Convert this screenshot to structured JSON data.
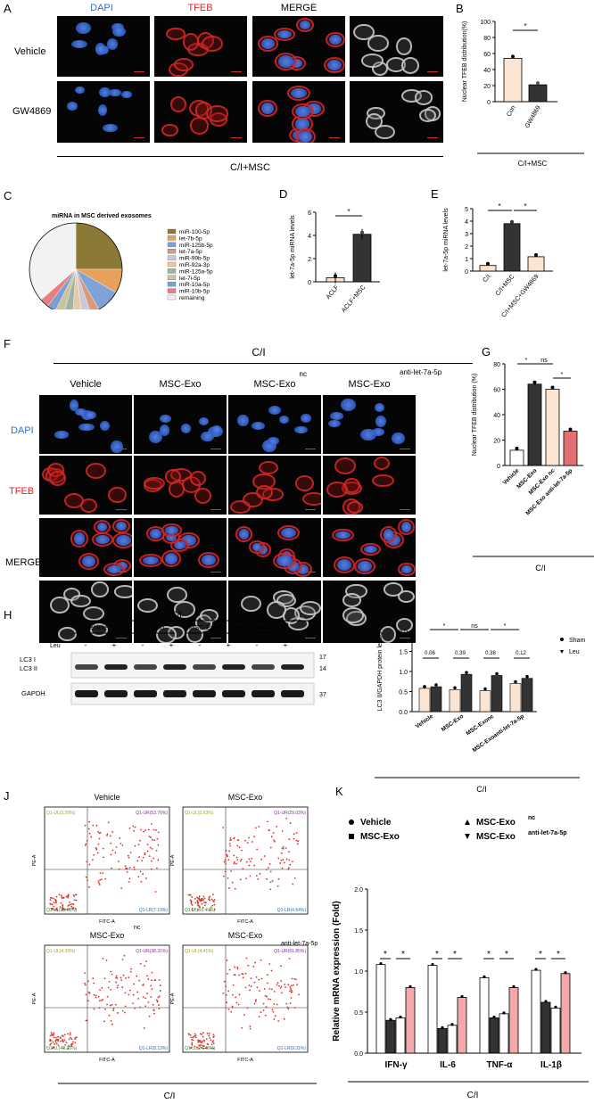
{
  "colors": {
    "dapi": "#2f6fd6",
    "tfeb": "#e02323",
    "light": "#fbe4d2",
    "dark": "#333333",
    "pink": "#f3a9a9",
    "legend": [
      "#8a7a36",
      "#e7a15a",
      "#7fa3d9",
      "#d99a7c",
      "#c9c9d9",
      "#e8c9a6",
      "#9fb4a0",
      "#c8c3a0",
      "#7f9ed0",
      "#e88080",
      "#f2f2f2"
    ]
  },
  "panelA": {
    "letter": "A",
    "headers": [
      "DAPI",
      "TFEB",
      "MERGE"
    ],
    "rows": [
      "Vehicle",
      "GW4869"
    ],
    "footer": "C/I+MSC"
  },
  "panelB": {
    "letter": "B",
    "ylabel": "Nuclear TFEB distribution(%)",
    "yticks": [
      "0",
      "20",
      "40",
      "60",
      "80",
      "100"
    ],
    "categories": [
      "Con",
      "GW4869"
    ],
    "sig": "*",
    "footer": "C/I+MSC"
  },
  "panelC": {
    "letter": "C",
    "title": "miRNA in MSC derived exosomes",
    "legend": [
      "miR-100-5p",
      "let-7b-5p",
      "miR-125b-5p",
      "let-7a-5p",
      "miR-99b-5p",
      "miR-92a-3p",
      "miR-125a-5p",
      "let-7i-5p",
      "miR-10a-5p",
      "miR-10b-5p",
      "remaining"
    ]
  },
  "panelD": {
    "letter": "D",
    "ylabel": "let-7a-5p miRNA levels",
    "yticks": [
      "0",
      "2",
      "4",
      "6"
    ],
    "categories": [
      "ACLF",
      "ACLF+MSC"
    ],
    "sig": "*"
  },
  "panelE": {
    "letter": "E",
    "ylabel": "let-7a-5p miRNA levels",
    "yticks": [
      "0",
      "1",
      "2",
      "3",
      "4",
      "5"
    ],
    "categories": [
      "C/I",
      "C/I+MSC",
      "C/I+MSC+GW4869"
    ],
    "sig": [
      "*",
      "*"
    ]
  },
  "panelF": {
    "letter": "F",
    "group": "C/I",
    "headers": [
      "Vehicle",
      "MSC-Exo",
      "MSC-Exo",
      "MSC-Exo"
    ],
    "superscripts": [
      "nc",
      "anti-let-7a-5p"
    ],
    "rows": [
      "DAPI",
      "TFEB",
      "MERGE"
    ]
  },
  "panelG": {
    "letter": "G",
    "ylabel": "Nuclear TFEB distribution (%)",
    "yticks": [
      "0",
      "20",
      "40",
      "60",
      "80"
    ],
    "categories": [
      "Vehicle",
      "MSC-Exo",
      "MSC-Exo",
      "MSC-Exo"
    ],
    "superscripts": [
      "nc",
      "anti-let-7a-5p"
    ],
    "sig": [
      "*",
      "ns",
      "*"
    ],
    "footer": "C/I"
  },
  "panelH": {
    "letter": "H",
    "group": "C/I",
    "groups": [
      "Vehicle",
      "MSC-Exo",
      "MSC-Exo",
      "MSC-Exo"
    ],
    "superscripts": [
      "nc",
      "anti-let-7a-5p"
    ],
    "leu": "Leu",
    "signs": [
      "-",
      "+",
      "-",
      "+",
      "-",
      "+",
      "-",
      "+"
    ],
    "bands": [
      "LC3 I",
      "LC3 II",
      "GAPDH"
    ],
    "kda": [
      "17",
      "14",
      "37"
    ]
  },
  "panelI": {
    "letter": "I",
    "ylabel": "LC3 II/GAPDH protein levels",
    "yticks": [
      "0.0",
      "0.5",
      "1.0",
      "1.5",
      "2.0"
    ],
    "legend": [
      "Sham",
      "Leu"
    ],
    "categories": [
      "Vehicle",
      "MSC-Exo",
      "MSC-Exo",
      "MSC-Exo"
    ],
    "superscripts": [
      "nc",
      "anti-let-7a-5p"
    ],
    "pvals": [
      "0.06",
      "0.39",
      "0.38",
      "0.12"
    ],
    "sig": [
      "*",
      "ns",
      "*"
    ],
    "footer": "C/I"
  },
  "panelJ": {
    "letter": "J",
    "titles": [
      "Vehicle",
      "MSC-Exo",
      "MSC-Exo",
      "MSC-Exo"
    ],
    "superscripts": [
      "nc",
      "anti-let-7a-5p"
    ],
    "xaxis": "FITC-A",
    "yaxis": "PE-A",
    "quadrants": [
      [
        "Q1-UL(3.39%)",
        "Q1-UR(53.76%)",
        "Q1-LL(35.98%)",
        "Q1-LR(7.19%)"
      ],
      [
        "Q1-UL(5.93%)",
        "Q1-UR(29.03%)",
        "Q1-LL(60.49%)",
        "Q1-LR(4.54%)"
      ],
      [
        "Q1-UL(4.39%)",
        "Q1-UR(38.31%)",
        "Q1-LL(49.38%)",
        "Q1-LR(8.13%)"
      ],
      [
        "Q1-UL(4.41%)",
        "Q1-UR(61.85%)",
        "Q1-LL(24.43%)",
        "Q1-LR(9.31%)"
      ]
    ],
    "footer": "C/I"
  },
  "panelK": {
    "letter": "K",
    "ylabel": "Relative mRNA expression (Fold)",
    "yticks": [
      "0.0",
      "0.5",
      "1.0",
      "1.5",
      "2.0"
    ],
    "legend": [
      "Vehicle",
      "MSC-Exo",
      "MSC-Exo",
      "MSC-Exo"
    ],
    "superscripts": [
      "nc",
      "anti-let-7a-5p"
    ],
    "categories": [
      "IFN-γ",
      "IL-6",
      "TNF-α",
      "IL-1β"
    ],
    "sig": "*",
    "footer": "C/I"
  },
  "chart_data": [
    {
      "type": "bar",
      "panel": "B",
      "categories": [
        "Con",
        "GW4869"
      ],
      "values": [
        54,
        21
      ],
      "ylim": [
        0,
        100
      ],
      "ylabel": "Nuclear TFEB distribution(%)"
    },
    {
      "type": "pie",
      "panel": "C",
      "categories": [
        "miR-100-5p",
        "let-7b-5p",
        "miR-125b-5p",
        "let-7a-5p",
        "miR-99b-5p",
        "miR-92a-3p",
        "miR-125a-5p",
        "let-7i-5p",
        "miR-10a-5p",
        "miR-10b-5p",
        "remaining"
      ],
      "values": [
        24,
        8,
        8,
        3,
        3,
        3,
        3,
        3,
        3,
        3,
        35
      ],
      "title": "miRNA in MSC derived exosomes"
    },
    {
      "type": "bar",
      "panel": "D",
      "categories": [
        "ACLF",
        "ACLF+MSC"
      ],
      "values": [
        0.35,
        4.1
      ],
      "ylim": [
        0,
        6
      ],
      "ylabel": "let-7a-5p miRNA levels"
    },
    {
      "type": "bar",
      "panel": "E",
      "categories": [
        "C/I",
        "C/I+MSC",
        "C/I+MSC+GW4869"
      ],
      "values": [
        0.45,
        3.8,
        1.15
      ],
      "ylim": [
        0,
        5
      ],
      "ylabel": "let-7a-5p miRNA levels"
    },
    {
      "type": "bar",
      "panel": "G",
      "categories": [
        "Vehicle",
        "MSC-Exo",
        "MSC-Exo nc",
        "MSC-Exo anti-let-7a-5p"
      ],
      "values": [
        12,
        64,
        60,
        27
      ],
      "ylim": [
        0,
        80
      ],
      "ylabel": "Nuclear TFEB distribution (%)"
    },
    {
      "type": "bar",
      "panel": "I",
      "categories": [
        "Vehicle",
        "MSC-Exo",
        "MSC-Exo nc",
        "MSC-Exo anti-let-7a-5p"
      ],
      "series": [
        {
          "name": "Sham",
          "values": [
            0.58,
            0.55,
            0.52,
            0.7
          ]
        },
        {
          "name": "Leu",
          "values": [
            0.62,
            0.93,
            0.9,
            0.83
          ]
        }
      ],
      "ylim": [
        0,
        2
      ],
      "ylabel": "LC3 II/GAPDH protein levels"
    },
    {
      "type": "bar",
      "panel": "K",
      "categories": [
        "IFN-γ",
        "IL-6",
        "TNF-α",
        "IL-1β"
      ],
      "series": [
        {
          "name": "Vehicle",
          "values": [
            1.08,
            1.07,
            0.92,
            1.01
          ]
        },
        {
          "name": "MSC-Exo",
          "values": [
            0.4,
            0.3,
            0.43,
            0.62
          ]
        },
        {
          "name": "MSC-Exo nc",
          "values": [
            0.43,
            0.34,
            0.48,
            0.55
          ]
        },
        {
          "name": "MSC-Exo anti-let-7a-5p",
          "values": [
            0.8,
            0.68,
            0.8,
            0.97
          ]
        }
      ],
      "ylim": [
        0,
        2
      ],
      "ylabel": "Relative mRNA expression (Fold)"
    }
  ]
}
